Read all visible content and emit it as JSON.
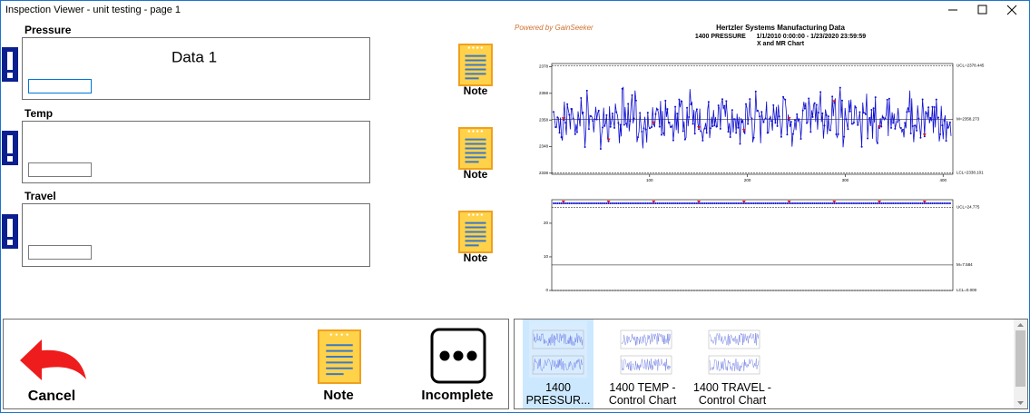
{
  "window": {
    "title": "Inspection Viewer - unit testing - page 1"
  },
  "fields": [
    {
      "label": "Pressure",
      "value": "Data 1",
      "note": "Note"
    },
    {
      "label": "Temp",
      "note": "Note"
    },
    {
      "label": "Travel",
      "note": "Note"
    }
  ],
  "chart": {
    "powered_by": "Powered by GainSeeker",
    "title": "Hertzler Systems Manufacturing Data",
    "subtitle": "1400 PRESSURE      1/1/2010 0:00:00 - 1/23/2020 23:59:59",
    "chart_name": "X and MR Chart",
    "xlim": [
      0,
      410
    ],
    "xticks": [
      100,
      200,
      300,
      400
    ],
    "x_chart": {
      "ylim": [
        2337.6,
        2379.2
      ],
      "yticks": [
        2338,
        2348,
        2358,
        2368,
        2378
      ],
      "ucl": {
        "value": 2378.445,
        "label": "UCL=2378.445"
      },
      "mean": {
        "value": 2358.273,
        "label": "M=2358.273"
      },
      "lcl": {
        "value": 2338.101,
        "label": "LCL=2338.101"
      }
    },
    "mr_chart": {
      "ylim": [
        0,
        27
      ],
      "yticks": [
        0,
        10,
        20
      ],
      "ucl": {
        "value": 24.775,
        "label": "UCL=24.775"
      },
      "mean": {
        "value": 7.584,
        "label": "M=7.584"
      },
      "lcl": {
        "value": 0,
        "label": "LCL=0.000"
      }
    }
  },
  "actions": [
    {
      "label": "Cancel"
    },
    {
      "label": "Note"
    },
    {
      "label": "Incomplete"
    }
  ],
  "thumbnails": [
    {
      "label": "1400 PRESSUR..."
    },
    {
      "label": "1400 TEMP - Control Chart"
    },
    {
      "label": "1400 TRAVEL - Control Chart"
    }
  ]
}
